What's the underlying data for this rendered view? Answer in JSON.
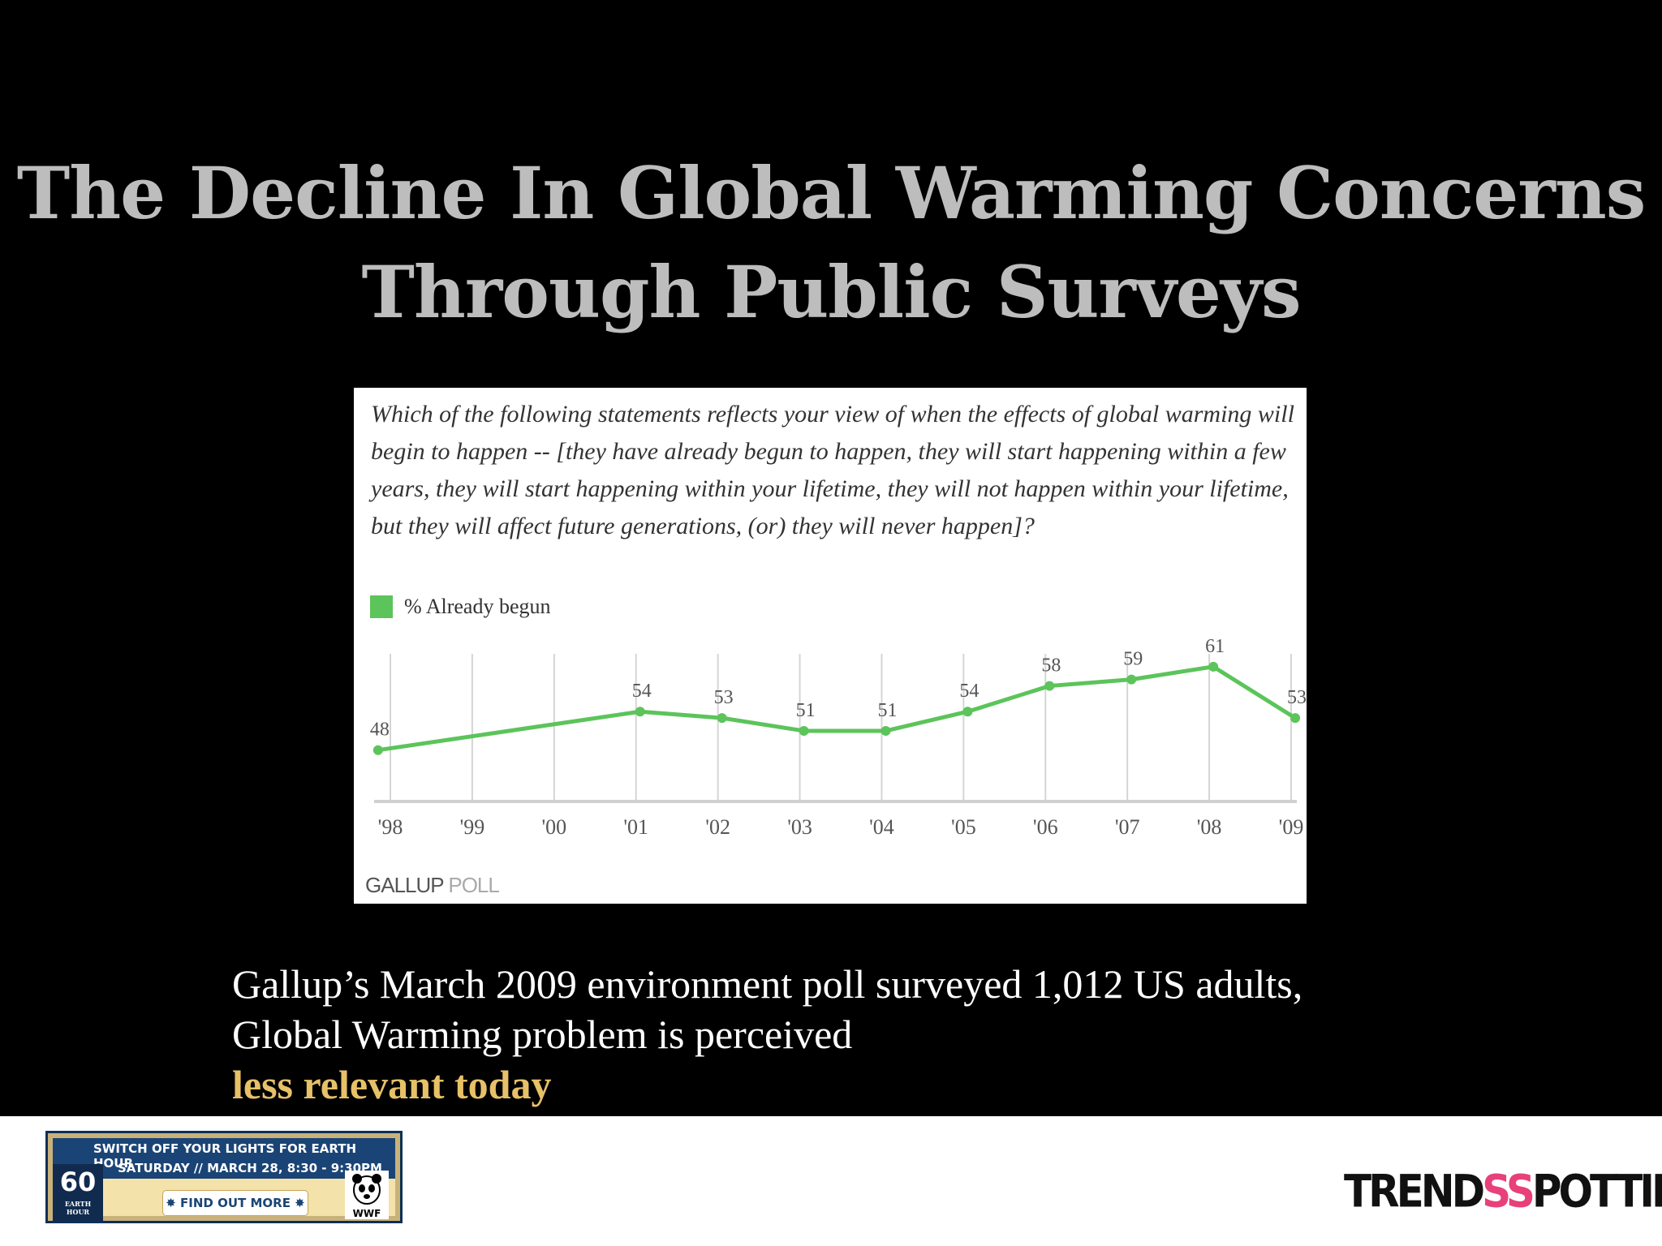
{
  "slide": {
    "title_lines": [
      "The Decline In Global Warming Concerns",
      "Through Public Surveys"
    ],
    "caption_line1": "Gallup’s March 2009 environment poll surveyed 1,012 US adults,",
    "caption_line2_prefix": "Global Warming problem is perceived ",
    "caption_highlight": "less relevant today",
    "highlight_color": "#e7c168"
  },
  "chart_data": {
    "type": "line",
    "question": "Which of the following statements reflects your view of when the effects of global warming will begin to happen -- [they have already begun to happen, they will start happening within a few years, they will start happening within your lifetime, they will not happen within your lifetime, but they will affect future generations, (or) they will never happen]?",
    "legend": [
      "% Already begun"
    ],
    "categories": [
      "'98",
      "'99",
      "'00",
      "'01",
      "'02",
      "'03",
      "'04",
      "'05",
      "'06",
      "'07",
      "'08",
      "'09"
    ],
    "series": [
      {
        "name": "% Already begun",
        "color": "#5cc45a",
        "points": [
          {
            "x": 1998.0,
            "y": 48,
            "label": "48"
          },
          {
            "x": 2001.2,
            "y": 54,
            "label": "54"
          },
          {
            "x": 2002.2,
            "y": 53,
            "label": "53"
          },
          {
            "x": 2003.2,
            "y": 51,
            "label": "51"
          },
          {
            "x": 2004.2,
            "y": 51,
            "label": "51"
          },
          {
            "x": 2005.2,
            "y": 54,
            "label": "54"
          },
          {
            "x": 2006.2,
            "y": 58,
            "label": "58"
          },
          {
            "x": 2007.2,
            "y": 59,
            "label": "59"
          },
          {
            "x": 2008.2,
            "y": 61,
            "label": "61"
          },
          {
            "x": 2009.2,
            "y": 53,
            "label": "53"
          }
        ]
      }
    ],
    "ylim": [
      40,
      63
    ],
    "grid": "vertical",
    "source": {
      "part1": "GALLUP",
      "part2": " POLL"
    }
  },
  "footer": {
    "banner_line1": "SWITCH OFF YOUR LIGHTS FOR EARTH HOUR",
    "banner_line2": "SATURDAY // MARCH 28, 8:30 - 9:30PM",
    "banner_number": "60",
    "banner_number_sub": "EARTH HOUR",
    "banner_button": "✸ FIND OUT MORE ✸",
    "wwf_label": "WWF",
    "logo_part1": "TREND",
    "logo_part2": "SS",
    "logo_part3": "POTTING"
  }
}
